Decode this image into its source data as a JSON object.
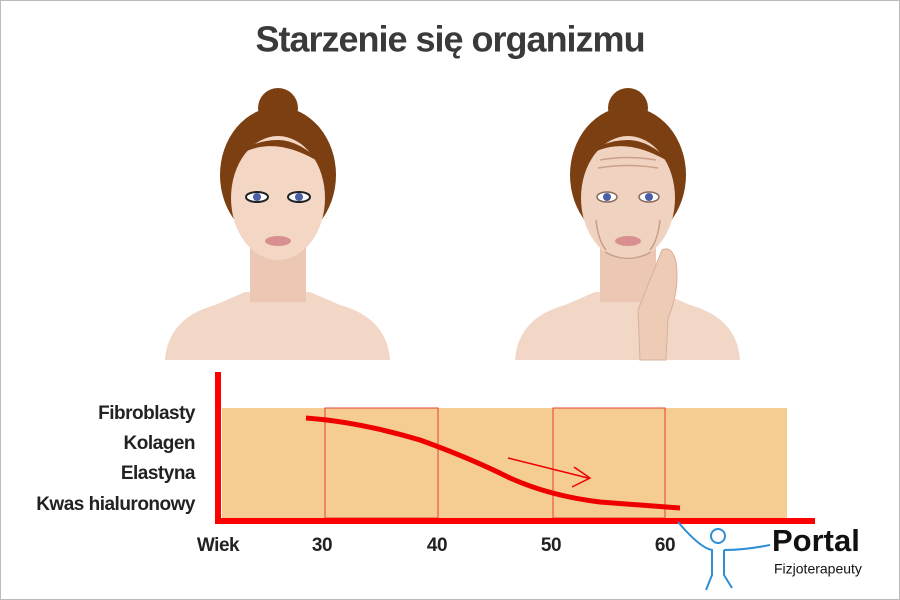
{
  "title": "Starzenie się organizmu",
  "row_labels": [
    "Fibroblasty",
    "Kolagen",
    "Elastyna",
    "Kwas hialuronowy"
  ],
  "x_axis": {
    "label": "Wiek",
    "ticks": [
      30,
      40,
      50,
      60
    ]
  },
  "logo": {
    "name": "Portal",
    "subtitle": "Fizjoterapeuty"
  }
}
